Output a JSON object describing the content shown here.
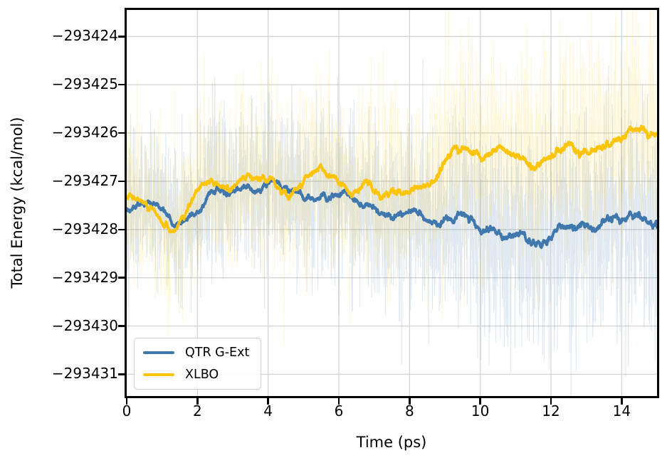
{
  "figure": {
    "background": "#ffffff"
  },
  "chart_data": {
    "type": "line",
    "title": "",
    "xlabel": "Time (ps)",
    "ylabel": "Total Energy (kcal/mol)",
    "xlim": [
      0,
      15
    ],
    "ylim": [
      -293431.45,
      -293423.45
    ],
    "xticks": [
      0,
      2,
      4,
      6,
      8,
      10,
      12,
      14
    ],
    "yticks": [
      -293424,
      -293425,
      -293426,
      -293427,
      -293428,
      -293429,
      -293430,
      -293431
    ],
    "grid": true,
    "grid_color": "#d5d5d5",
    "legend_position": "lower left",
    "samples": 2400,
    "series": [
      {
        "name": "QTR G-Ext",
        "color": "#4077AD",
        "raw_band_opacity": 0.16,
        "noise_sigma": [
          0.78,
          1.12
        ],
        "late_skew": {
          "after": 8.5,
          "direction": -1,
          "factor": 1.2
        },
        "seed": 42,
        "mean_points": [
          [
            0.0,
            -293427.45
          ],
          [
            0.25,
            -293427.55
          ],
          [
            0.5,
            -293427.4
          ],
          [
            0.75,
            -293427.5
          ],
          [
            1.0,
            -293427.65
          ],
          [
            1.3,
            -293428.0
          ],
          [
            1.55,
            -293427.75
          ],
          [
            1.8,
            -293427.6
          ],
          [
            2.1,
            -293427.4
          ],
          [
            2.4,
            -293427.3
          ],
          [
            2.7,
            -293427.2
          ],
          [
            3.0,
            -293427.3
          ],
          [
            3.3,
            -293427.15
          ],
          [
            3.6,
            -293427.2
          ],
          [
            3.9,
            -293427.1
          ],
          [
            4.2,
            -293427.15
          ],
          [
            4.5,
            -293427.35
          ],
          [
            4.8,
            -293427.45
          ],
          [
            5.1,
            -293427.35
          ],
          [
            5.4,
            -293427.3
          ],
          [
            5.7,
            -293427.35
          ],
          [
            6.0,
            -293427.3
          ],
          [
            6.3,
            -293427.35
          ],
          [
            6.6,
            -293427.45
          ],
          [
            6.9,
            -293427.5
          ],
          [
            7.2,
            -293427.65
          ],
          [
            7.5,
            -293427.75
          ],
          [
            7.8,
            -293427.8
          ],
          [
            8.1,
            -293427.7
          ],
          [
            8.4,
            -293427.75
          ],
          [
            8.7,
            -293427.7
          ],
          [
            9.0,
            -293427.65
          ],
          [
            9.3,
            -293427.75
          ],
          [
            9.6,
            -293427.7
          ],
          [
            9.9,
            -293427.8
          ],
          [
            10.2,
            -293427.85
          ],
          [
            10.5,
            -293427.9
          ],
          [
            10.8,
            -293428.0
          ],
          [
            11.1,
            -293428.05
          ],
          [
            11.4,
            -293428.15
          ],
          [
            11.7,
            -293428.1
          ],
          [
            12.0,
            -293427.95
          ],
          [
            12.3,
            -293427.9
          ],
          [
            12.6,
            -293427.85
          ],
          [
            12.9,
            -293427.9
          ],
          [
            13.2,
            -293427.85
          ],
          [
            13.5,
            -293427.8
          ],
          [
            13.8,
            -293427.85
          ],
          [
            14.1,
            -293427.8
          ],
          [
            14.4,
            -293427.75
          ],
          [
            14.7,
            -293427.8
          ],
          [
            15.0,
            -293427.7
          ]
        ]
      },
      {
        "name": "XLBO",
        "color": "#FCC40A",
        "raw_band_opacity": 0.14,
        "noise_sigma": [
          0.85,
          1.05
        ],
        "late_skew": {
          "after": 8.5,
          "direction": 1,
          "factor": 1.15
        },
        "seed": 7,
        "mean_points": [
          [
            0.0,
            -293427.5
          ],
          [
            0.25,
            -293427.5
          ],
          [
            0.5,
            -293427.4
          ],
          [
            0.75,
            -293427.45
          ],
          [
            1.0,
            -293427.6
          ],
          [
            1.3,
            -293427.95
          ],
          [
            1.55,
            -293427.65
          ],
          [
            1.8,
            -293427.45
          ],
          [
            2.1,
            -293427.2
          ],
          [
            2.4,
            -293427.1
          ],
          [
            2.7,
            -293427.05
          ],
          [
            3.0,
            -293427.0
          ],
          [
            3.3,
            -293426.95
          ],
          [
            3.6,
            -293426.9
          ],
          [
            3.9,
            -293427.0
          ],
          [
            4.2,
            -293427.1
          ],
          [
            4.5,
            -293427.15
          ],
          [
            4.8,
            -293427.1
          ],
          [
            5.1,
            -293427.0
          ],
          [
            5.4,
            -293426.95
          ],
          [
            5.7,
            -293427.0
          ],
          [
            6.0,
            -293427.05
          ],
          [
            6.3,
            -293427.0
          ],
          [
            6.6,
            -293427.1
          ],
          [
            6.9,
            -293427.15
          ],
          [
            7.2,
            -293427.2
          ],
          [
            7.5,
            -293427.15
          ],
          [
            7.8,
            -293427.1
          ],
          [
            8.1,
            -293427.15
          ],
          [
            8.4,
            -293427.05
          ],
          [
            8.7,
            -293426.9
          ],
          [
            9.0,
            -293426.65
          ],
          [
            9.3,
            -293426.55
          ],
          [
            9.6,
            -293426.5
          ],
          [
            9.9,
            -293426.45
          ],
          [
            10.2,
            -293426.4
          ],
          [
            10.5,
            -293426.3
          ],
          [
            10.8,
            -293426.25
          ],
          [
            11.1,
            -293426.35
          ],
          [
            11.4,
            -293426.5
          ],
          [
            11.7,
            -293426.55
          ],
          [
            12.0,
            -293426.5
          ],
          [
            12.3,
            -293426.45
          ],
          [
            12.6,
            -293426.4
          ],
          [
            12.9,
            -293426.45
          ],
          [
            13.2,
            -293426.4
          ],
          [
            13.5,
            -293426.3
          ],
          [
            13.8,
            -293426.3
          ],
          [
            14.1,
            -293426.2
          ],
          [
            14.4,
            -293426.15
          ],
          [
            14.7,
            -293426.05
          ],
          [
            15.0,
            -293426.15
          ]
        ]
      }
    ]
  }
}
